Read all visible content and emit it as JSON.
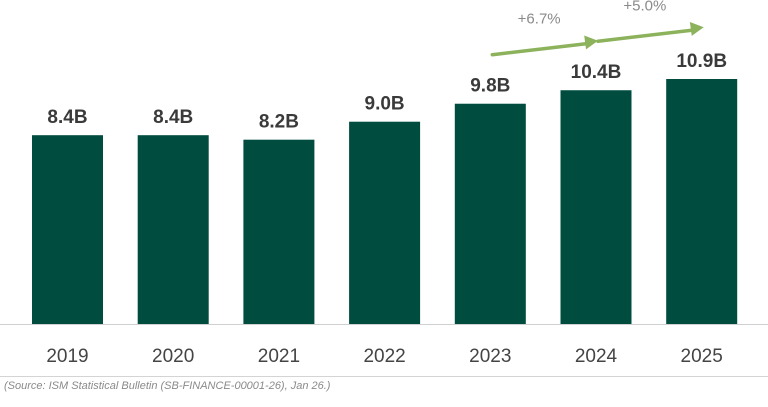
{
  "chart_data": {
    "type": "bar",
    "categories": [
      "2019",
      "2020",
      "2021",
      "2022",
      "2023",
      "2024",
      "2025"
    ],
    "values": [
      8.4,
      8.4,
      8.2,
      9.0,
      9.8,
      10.4,
      10.9
    ],
    "value_labels": [
      "8.4B",
      "8.4B",
      "8.2B",
      "9.0B",
      "9.8B",
      "10.4B",
      "10.9B"
    ],
    "annotations": [
      {
        "from": "2023",
        "to": "2024",
        "text": "+6.7%"
      },
      {
        "from": "2024",
        "to": "2025",
        "text": "+5.0%"
      }
    ],
    "title": "",
    "xlabel": "",
    "ylabel": "",
    "ylim": [
      0,
      11
    ],
    "grid": false,
    "legend": "none",
    "colors": {
      "bar": "#004d40",
      "arrow": "#8cb25c",
      "label": "#3a3a3a",
      "tick": "#444444",
      "annotation": "#8a8a8a"
    }
  },
  "source_note": "(Source: ISM Statistical Bulletin (SB-FINANCE-00001-26), Jan 26.)"
}
